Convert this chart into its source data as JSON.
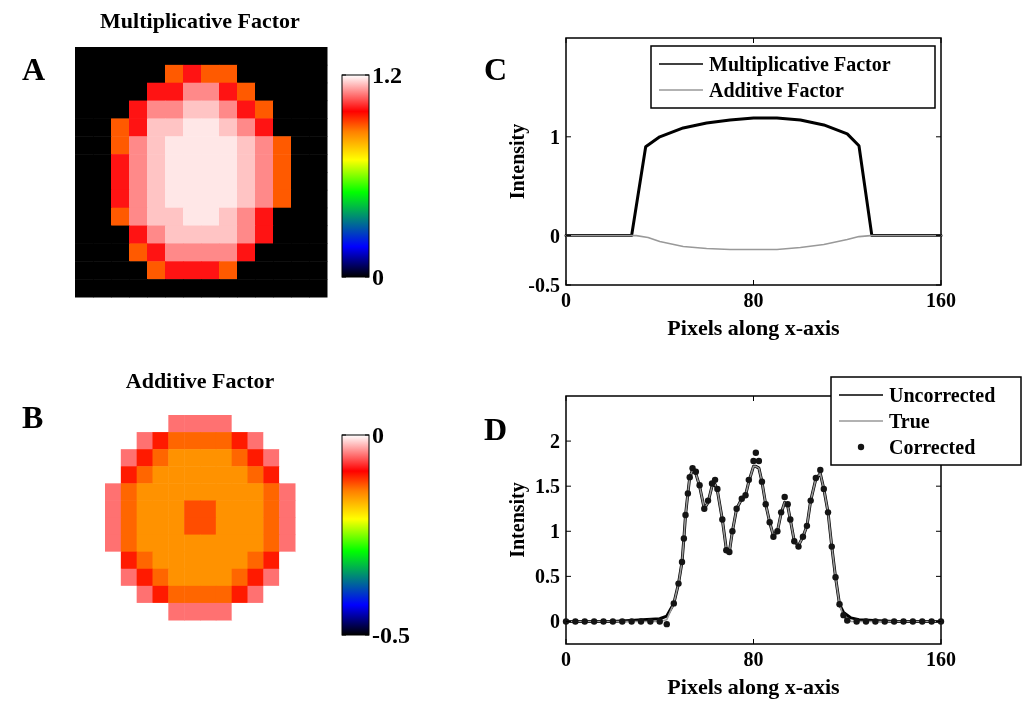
{
  "chart_data": [
    {
      "type": "heatmap",
      "title": "Multiplicative Factor",
      "annotations": [
        "A"
      ],
      "categories": [
        null,
        null,
        null,
        null,
        null,
        null,
        null,
        null,
        null,
        null,
        null,
        null,
        null,
        null
      ],
      "y_categories": [
        null,
        null,
        null,
        null,
        null,
        null,
        null,
        null,
        null,
        null,
        null,
        null,
        null,
        null
      ],
      "clim": [
        0,
        1.2
      ],
      "cticks": [
        0,
        1.2
      ],
      "cells": [
        [
          0,
          0,
          0,
          0,
          0,
          0,
          0,
          0,
          0,
          0,
          0,
          0,
          0,
          0
        ],
        [
          0,
          0,
          0,
          0,
          0,
          0.9,
          1.0,
          0.9,
          0.9,
          0,
          0,
          0,
          0,
          0
        ],
        [
          0,
          0,
          0,
          0,
          1.0,
          1.0,
          1.1,
          1.1,
          1.0,
          0.9,
          0,
          0,
          0,
          0
        ],
        [
          0,
          0,
          0,
          1.0,
          1.1,
          1.1,
          1.15,
          1.15,
          1.1,
          1.0,
          0.9,
          0,
          0,
          0
        ],
        [
          0,
          0,
          0.9,
          1.0,
          1.15,
          1.15,
          1.18,
          1.18,
          1.15,
          1.1,
          1.0,
          0,
          0,
          0
        ],
        [
          0,
          0,
          0.9,
          1.1,
          1.15,
          1.18,
          1.18,
          1.18,
          1.18,
          1.15,
          1.1,
          0.9,
          0,
          0
        ],
        [
          0,
          0,
          1.0,
          1.1,
          1.15,
          1.18,
          1.18,
          1.18,
          1.18,
          1.15,
          1.1,
          0.9,
          0,
          0
        ],
        [
          0,
          0,
          1.0,
          1.1,
          1.15,
          1.18,
          1.18,
          1.18,
          1.18,
          1.15,
          1.1,
          0.9,
          0,
          0
        ],
        [
          0,
          0,
          1.0,
          1.1,
          1.15,
          1.18,
          1.18,
          1.18,
          1.18,
          1.15,
          1.1,
          0.9,
          0,
          0
        ],
        [
          0,
          0,
          0.9,
          1.1,
          1.15,
          1.15,
          1.18,
          1.18,
          1.15,
          1.1,
          1.0,
          0,
          0,
          0
        ],
        [
          0,
          0,
          0,
          1.0,
          1.1,
          1.15,
          1.15,
          1.15,
          1.15,
          1.1,
          1.0,
          0,
          0,
          0
        ],
        [
          0,
          0,
          0,
          0.9,
          1.0,
          1.1,
          1.1,
          1.1,
          1.1,
          1.0,
          0,
          0,
          0,
          0
        ],
        [
          0,
          0,
          0,
          0,
          0.9,
          1.0,
          1.0,
          1.0,
          0.9,
          0,
          0,
          0,
          0,
          0
        ],
        [
          0,
          0,
          0,
          0,
          0,
          0,
          0,
          0,
          0,
          0,
          0,
          0,
          0,
          0
        ]
      ]
    },
    {
      "type": "line",
      "annotations": [
        "C"
      ],
      "xlabel": "Pixels along x-axis",
      "ylabel": "Intensity",
      "xlim": [
        0,
        160
      ],
      "xticks": [
        0,
        80,
        160
      ],
      "ylim": [
        -0.5,
        2
      ],
      "yticks": [
        -0.5,
        0,
        1
      ],
      "legend": "top right",
      "series": [
        {
          "name": "Multiplicative Factor",
          "color": "#000000",
          "x": [
            0,
            28,
            34,
            40,
            50,
            60,
            70,
            80,
            90,
            100,
            110,
            120,
            125,
            130.5,
            160
          ],
          "values": [
            0,
            0,
            0.9,
            1.0,
            1.09,
            1.14,
            1.17,
            1.19,
            1.19,
            1.17,
            1.12,
            1.03,
            0.91,
            0,
            0
          ]
        },
        {
          "name": "Additive Factor",
          "color": "#999999",
          "x": [
            0,
            30,
            35,
            40,
            50,
            60,
            70,
            80,
            90,
            100,
            110,
            120,
            125,
            130,
            160
          ],
          "values": [
            0,
            0,
            -0.02,
            -0.06,
            -0.11,
            -0.13,
            -0.14,
            -0.14,
            -0.14,
            -0.12,
            -0.09,
            -0.04,
            -0.01,
            0,
            0
          ]
        }
      ]
    },
    {
      "type": "heatmap",
      "title": "Additive Factor",
      "annotations": [
        "B"
      ],
      "categories": [
        null,
        null,
        null,
        null,
        null,
        null,
        null,
        null,
        null,
        null,
        null,
        null
      ],
      "y_categories": [
        null,
        null,
        null,
        null,
        null,
        null,
        null,
        null,
        null,
        null,
        null,
        null
      ],
      "clim": [
        -0.5,
        0
      ],
      "cticks": [
        -0.5,
        0
      ],
      "cells": [
        [
          0,
          0,
          0,
          0,
          -0.05,
          -0.05,
          -0.05,
          -0.05,
          0,
          0,
          0,
          0
        ],
        [
          0,
          0,
          -0.05,
          -0.1,
          -0.13,
          -0.13,
          -0.13,
          -0.13,
          -0.1,
          -0.05,
          0,
          0
        ],
        [
          0,
          -0.05,
          -0.1,
          -0.13,
          -0.15,
          -0.15,
          -0.15,
          -0.15,
          -0.13,
          -0.1,
          -0.05,
          0
        ],
        [
          0,
          -0.1,
          -0.13,
          -0.15,
          -0.15,
          -0.15,
          -0.15,
          -0.15,
          -0.15,
          -0.13,
          -0.1,
          0
        ],
        [
          -0.05,
          -0.13,
          -0.15,
          -0.15,
          -0.15,
          -0.15,
          -0.15,
          -0.15,
          -0.15,
          -0.15,
          -0.13,
          -0.05
        ],
        [
          -0.05,
          -0.13,
          -0.15,
          -0.15,
          -0.15,
          -0.12,
          -0.12,
          -0.15,
          -0.15,
          -0.15,
          -0.13,
          -0.05
        ],
        [
          -0.05,
          -0.13,
          -0.15,
          -0.15,
          -0.15,
          -0.12,
          -0.12,
          -0.15,
          -0.15,
          -0.15,
          -0.13,
          -0.05
        ],
        [
          -0.05,
          -0.13,
          -0.15,
          -0.15,
          -0.15,
          -0.15,
          -0.15,
          -0.15,
          -0.15,
          -0.15,
          -0.13,
          -0.05
        ],
        [
          0,
          -0.1,
          -0.13,
          -0.15,
          -0.15,
          -0.15,
          -0.15,
          -0.15,
          -0.15,
          -0.13,
          -0.1,
          0
        ],
        [
          0,
          -0.05,
          -0.1,
          -0.13,
          -0.15,
          -0.15,
          -0.15,
          -0.15,
          -0.13,
          -0.1,
          -0.05,
          0
        ],
        [
          0,
          0,
          -0.05,
          -0.1,
          -0.13,
          -0.13,
          -0.13,
          -0.13,
          -0.1,
          -0.05,
          0,
          0
        ],
        [
          0,
          0,
          0,
          0,
          -0.05,
          -0.05,
          -0.05,
          -0.05,
          0,
          0,
          0,
          0
        ]
      ]
    },
    {
      "type": "line",
      "annotations": [
        "D"
      ],
      "xlabel": "Pixels along x-axis",
      "ylabel": "Intensity",
      "xlim": [
        0,
        160
      ],
      "xticks": [
        0,
        80,
        160
      ],
      "ylim": [
        -0.25,
        2.5
      ],
      "yticks": [
        0,
        0.5,
        1,
        1.5,
        2
      ],
      "legend": "top right",
      "series": [
        {
          "name": "Uncorrected",
          "color": "#000000",
          "x": [
            0,
            20,
            40,
            43,
            46,
            48,
            49.5,
            50.3,
            51,
            52,
            52.8,
            54,
            55.4,
            57,
            59,
            60.6,
            62.3,
            63.6,
            64.6,
            66.7,
            68.4,
            69.7,
            71,
            72.8,
            75,
            76.6,
            78,
            80,
            81,
            82.3,
            83.6,
            85.2,
            86.9,
            88.5,
            90.2,
            91.8,
            93.3,
            94.6,
            95.7,
            97.4,
            99.2,
            101.1,
            102.8,
            104.4,
            106.6,
            108.5,
            110,
            111.8,
            113.4,
            115,
            116.7,
            118.4,
            121.6,
            125,
            140,
            160
          ],
          "values": [
            0,
            0,
            0.03,
            0.06,
            0.2,
            0.42,
            0.66,
            0.92,
            1.18,
            1.42,
            1.6,
            1.68,
            1.64,
            1.5,
            1.25,
            1.32,
            1.5,
            1.52,
            1.45,
            1.13,
            0.8,
            0.77,
            1.0,
            1.25,
            1.36,
            1.4,
            1.55,
            1.72,
            1.72,
            1.7,
            1.55,
            1.3,
            1.1,
            0.95,
            1.0,
            1.2,
            1.32,
            1.28,
            1.13,
            0.89,
            0.84,
            0.94,
            1.06,
            1.34,
            1.58,
            1.64,
            1.47,
            1.21,
            0.83,
            0.49,
            0.19,
            0.1,
            0.04,
            0.02,
            0,
            0
          ]
        },
        {
          "name": "True",
          "color": "#999999",
          "x": [
            0,
            20,
            40,
            43,
            46,
            48,
            49.5,
            50.3,
            51,
            52,
            52.8,
            54,
            55.4,
            57,
            59,
            60.6,
            62.3,
            63.6,
            64.6,
            66.7,
            68.4,
            69.7,
            71,
            72.8,
            75,
            76.6,
            78,
            80,
            81,
            82.3,
            83.6,
            85.2,
            86.9,
            88.5,
            90.2,
            91.8,
            93.3,
            94.6,
            95.7,
            97.4,
            99.2,
            101.1,
            102.8,
            104.4,
            106.6,
            108.5,
            110,
            111.8,
            113.4,
            115,
            116.7,
            118.4,
            121.6,
            125,
            140,
            160
          ],
          "values": [
            0,
            0,
            0,
            0.02,
            0.2,
            0.42,
            0.66,
            0.92,
            1.18,
            1.42,
            1.6,
            1.68,
            1.64,
            1.5,
            1.25,
            1.32,
            1.5,
            1.52,
            1.45,
            1.13,
            0.8,
            0.77,
            1.0,
            1.25,
            1.36,
            1.4,
            1.55,
            1.72,
            1.72,
            1.7,
            1.55,
            1.3,
            1.1,
            0.95,
            1.0,
            1.2,
            1.32,
            1.28,
            1.13,
            0.89,
            0.84,
            0.94,
            1.06,
            1.34,
            1.58,
            1.64,
            1.47,
            1.21,
            0.83,
            0.49,
            0.19,
            0.05,
            0,
            0,
            0,
            0
          ]
        },
        {
          "name": "Corrected",
          "type": "scatter",
          "marker": "circle",
          "color": "#141414",
          "x": [
            0,
            4,
            8,
            12,
            16,
            20,
            24,
            28,
            32,
            36,
            40,
            43,
            46,
            48,
            49.5,
            50.3,
            51,
            52,
            52.8,
            54,
            55.4,
            57,
            59,
            60.6,
            62.3,
            63.6,
            64.6,
            66.7,
            68.4,
            69.7,
            71,
            72.8,
            75,
            76.6,
            78,
            80,
            81,
            82.3,
            83.6,
            85.2,
            86.9,
            88.5,
            90.2,
            91.8,
            93.3,
            94.6,
            95.7,
            97.4,
            99.2,
            101.1,
            102.8,
            104.4,
            106.6,
            108.5,
            110,
            111.8,
            113.4,
            115,
            116.7,
            118.4,
            120,
            124,
            128,
            132,
            136,
            140,
            144,
            148,
            152,
            156,
            160
          ],
          "values": [
            0,
            0,
            0,
            0,
            0,
            0,
            0,
            0,
            0,
            0,
            0,
            -0.03,
            0.2,
            0.42,
            0.66,
            0.92,
            1.18,
            1.42,
            1.6,
            1.7,
            1.66,
            1.51,
            1.25,
            1.34,
            1.53,
            1.57,
            1.47,
            1.13,
            0.79,
            0.77,
            1.0,
            1.25,
            1.36,
            1.4,
            1.57,
            1.78,
            1.87,
            1.78,
            1.55,
            1.3,
            1.1,
            0.94,
            1.0,
            1.21,
            1.38,
            1.3,
            1.13,
            0.89,
            0.83,
            0.94,
            1.06,
            1.34,
            1.59,
            1.68,
            1.47,
            1.21,
            0.83,
            0.49,
            0.19,
            0.07,
            0.01,
            0,
            0,
            0,
            0,
            0,
            0,
            0,
            0,
            0,
            0
          ]
        }
      ]
    }
  ]
}
